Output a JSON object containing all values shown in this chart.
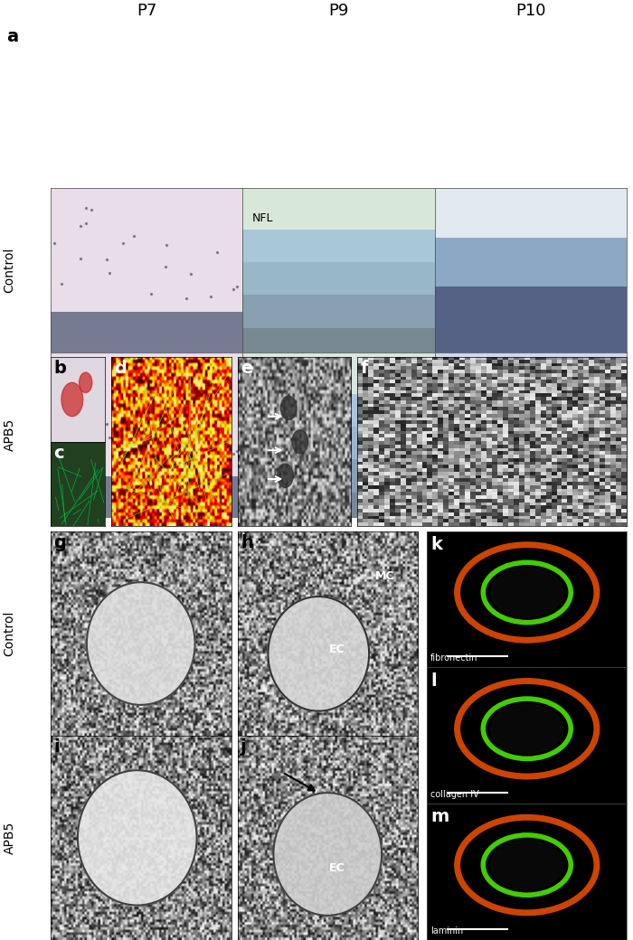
{
  "figure_width": 7.0,
  "figure_height": 10.4,
  "dpi": 100,
  "bg_color": "#ffffff",
  "panel_a_label": "a",
  "panel_b_label": "b",
  "panel_c_label": "c",
  "panel_d_label": "d",
  "panel_e_label": "e",
  "panel_f_label": "f",
  "panel_g_label": "g",
  "panel_h_label": "h",
  "panel_i_label": "i",
  "panel_j_label": "j",
  "panel_k_label": "k",
  "panel_l_label": "l",
  "panel_m_label": "m",
  "col_labels": [
    "P7",
    "P9",
    "P10"
  ],
  "row_labels_a": [
    "Control",
    "APB5"
  ],
  "row_labels_bottom": [
    "Control",
    "APB5"
  ],
  "nfl_label": "NFL",
  "mc_label": "MC",
  "ec_label_h": "EC",
  "ec_label_j": "EC",
  "fibronectin_label": "fibronectin",
  "collagen_iv_label": "collagen IV",
  "laminin_label": "laminin",
  "label_fontsize": 14,
  "sublabel_fontsize": 11,
  "annotation_fontsize": 9,
  "col_label_fontsize": 13,
  "row_label_fontsize": 10,
  "panel_a_colors": {
    "ctrl_p7_bg": "#e8dde8",
    "ctrl_p9_bg": "#d8e8d8",
    "ctrl_p10_bg": "#e0e8f0",
    "apb5_p7_bg": "#e8dde8",
    "apb5_p9_bg": "#d8e4e8",
    "apb5_p10_bg": "#d0d8f0"
  },
  "panel_b_bg": "#e0d8e0",
  "panel_c_bg": "#204020",
  "panel_d_bg": "#802000",
  "panel_e_bg": "#909090",
  "panel_f_bg": "#a0a0a0",
  "panel_g_bg": "#b8b8b8",
  "panel_h_bg": "#c0c0c0",
  "panel_i_bg": "#b0b0b0",
  "panel_j_bg": "#c8c8c8",
  "panel_k_bg": "#000000",
  "panel_l_bg": "#000000",
  "panel_m_bg": "#000000"
}
